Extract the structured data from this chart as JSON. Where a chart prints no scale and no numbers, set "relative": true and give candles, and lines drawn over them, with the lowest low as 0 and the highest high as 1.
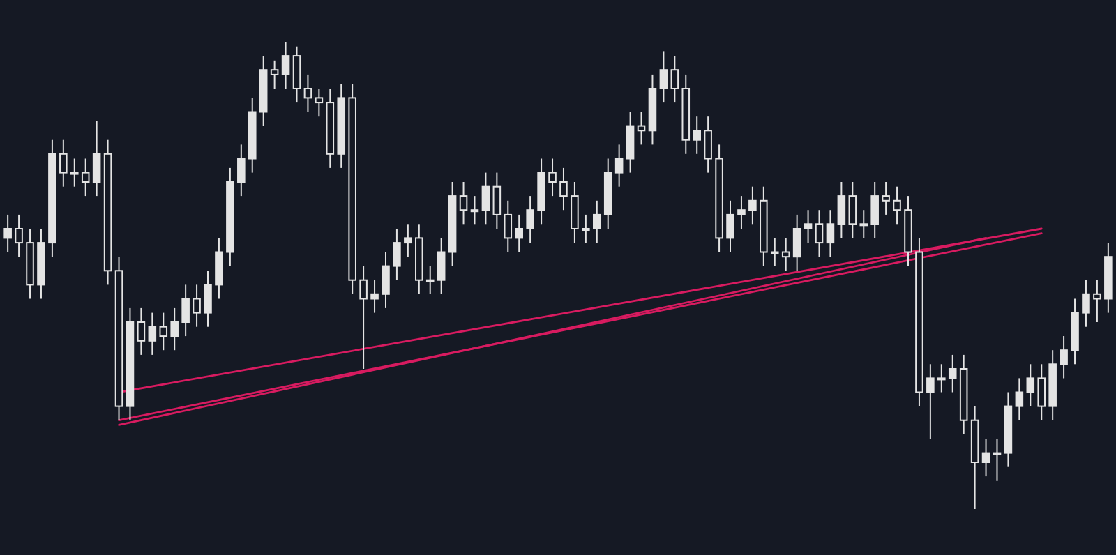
{
  "chart_data": {
    "type": "candlestick",
    "relative": true,
    "color": "#e4e4e4",
    "categories": [
      null,
      null,
      null,
      null,
      null,
      null,
      null,
      null,
      null,
      null,
      null,
      null,
      null,
      null,
      null,
      null,
      null,
      null,
      null,
      null,
      null,
      null,
      null,
      null,
      null,
      null,
      null,
      null,
      null,
      null,
      null,
      null,
      null,
      null,
      null,
      null,
      null,
      null,
      null,
      null,
      null,
      null,
      null,
      null,
      null,
      null,
      null,
      null,
      null,
      null,
      null,
      null,
      null,
      null,
      null,
      null,
      null,
      null,
      null,
      null,
      null,
      null,
      null,
      null,
      null,
      null,
      null,
      null,
      null,
      null,
      null,
      null,
      null,
      null,
      null,
      null,
      null,
      null,
      null,
      null,
      null,
      null,
      null,
      null,
      null,
      null,
      null,
      null,
      null,
      null,
      null,
      null,
      null,
      null,
      null,
      null,
      null,
      null,
      null,
      null
    ],
    "ohlc": [
      [
        0.58,
        0.63,
        0.55,
        0.6
      ],
      [
        0.6,
        0.63,
        0.54,
        0.57
      ],
      [
        0.57,
        0.6,
        0.45,
        0.48
      ],
      [
        0.48,
        0.6,
        0.45,
        0.57
      ],
      [
        0.57,
        0.79,
        0.54,
        0.76
      ],
      [
        0.76,
        0.79,
        0.69,
        0.72
      ],
      [
        0.72,
        0.75,
        0.69,
        0.72
      ],
      [
        0.72,
        0.75,
        0.67,
        0.7
      ],
      [
        0.7,
        0.83,
        0.67,
        0.76
      ],
      [
        0.76,
        0.79,
        0.48,
        0.51
      ],
      [
        0.51,
        0.54,
        0.19,
        0.22
      ],
      [
        0.22,
        0.43,
        0.19,
        0.4
      ],
      [
        0.4,
        0.43,
        0.33,
        0.36
      ],
      [
        0.36,
        0.42,
        0.33,
        0.39
      ],
      [
        0.39,
        0.42,
        0.34,
        0.37
      ],
      [
        0.37,
        0.43,
        0.34,
        0.4
      ],
      [
        0.4,
        0.48,
        0.37,
        0.45
      ],
      [
        0.45,
        0.48,
        0.39,
        0.42
      ],
      [
        0.42,
        0.51,
        0.39,
        0.48
      ],
      [
        0.48,
        0.58,
        0.45,
        0.55
      ],
      [
        0.55,
        0.73,
        0.52,
        0.7
      ],
      [
        0.7,
        0.78,
        0.67,
        0.75
      ],
      [
        0.75,
        0.88,
        0.72,
        0.85
      ],
      [
        0.85,
        0.97,
        0.82,
        0.94
      ],
      [
        0.94,
        0.96,
        0.9,
        0.93
      ],
      [
        0.93,
        1,
        0.9,
        0.97
      ],
      [
        0.97,
        0.99,
        0.87,
        0.9
      ],
      [
        0.9,
        0.93,
        0.85,
        0.88
      ],
      [
        0.88,
        0.9,
        0.84,
        0.87
      ],
      [
        0.87,
        0.9,
        0.73,
        0.76
      ],
      [
        0.76,
        0.91,
        0.73,
        0.88
      ],
      [
        0.88,
        0.91,
        0.46,
        0.49
      ],
      [
        0.49,
        0.52,
        0.3,
        0.45
      ],
      [
        0.45,
        0.49,
        0.42,
        0.46
      ],
      [
        0.46,
        0.55,
        0.43,
        0.52
      ],
      [
        0.52,
        0.6,
        0.49,
        0.57
      ],
      [
        0.57,
        0.61,
        0.54,
        0.58
      ],
      [
        0.58,
        0.61,
        0.46,
        0.49
      ],
      [
        0.49,
        0.52,
        0.46,
        0.49
      ],
      [
        0.49,
        0.58,
        0.46,
        0.55
      ],
      [
        0.55,
        0.7,
        0.52,
        0.67
      ],
      [
        0.67,
        0.7,
        0.61,
        0.64
      ],
      [
        0.64,
        0.67,
        0.61,
        0.64
      ],
      [
        0.64,
        0.72,
        0.61,
        0.69
      ],
      [
        0.69,
        0.72,
        0.6,
        0.63
      ],
      [
        0.63,
        0.66,
        0.55,
        0.58
      ],
      [
        0.58,
        0.63,
        0.55,
        0.6
      ],
      [
        0.6,
        0.67,
        0.57,
        0.64
      ],
      [
        0.64,
        0.75,
        0.61,
        0.72
      ],
      [
        0.72,
        0.75,
        0.67,
        0.7
      ],
      [
        0.7,
        0.73,
        0.64,
        0.67
      ],
      [
        0.67,
        0.7,
        0.57,
        0.6
      ],
      [
        0.6,
        0.63,
        0.57,
        0.6
      ],
      [
        0.6,
        0.66,
        0.57,
        0.63
      ],
      [
        0.63,
        0.75,
        0.6,
        0.72
      ],
      [
        0.72,
        0.78,
        0.69,
        0.75
      ],
      [
        0.75,
        0.85,
        0.72,
        0.82
      ],
      [
        0.82,
        0.85,
        0.78,
        0.81
      ],
      [
        0.81,
        0.93,
        0.78,
        0.9
      ],
      [
        0.9,
        0.98,
        0.87,
        0.94
      ],
      [
        0.94,
        0.97,
        0.87,
        0.9
      ],
      [
        0.9,
        0.93,
        0.76,
        0.79
      ],
      [
        0.79,
        0.84,
        0.76,
        0.81
      ],
      [
        0.81,
        0.84,
        0.72,
        0.75
      ],
      [
        0.75,
        0.78,
        0.55,
        0.58
      ],
      [
        0.58,
        0.66,
        0.55,
        0.63
      ],
      [
        0.63,
        0.67,
        0.6,
        0.64
      ],
      [
        0.64,
        0.69,
        0.61,
        0.66
      ],
      [
        0.66,
        0.69,
        0.52,
        0.55
      ],
      [
        0.55,
        0.58,
        0.52,
        0.55
      ],
      [
        0.55,
        0.58,
        0.51,
        0.54
      ],
      [
        0.54,
        0.63,
        0.51,
        0.6
      ],
      [
        0.6,
        0.64,
        0.57,
        0.61
      ],
      [
        0.61,
        0.64,
        0.54,
        0.57
      ],
      [
        0.57,
        0.64,
        0.54,
        0.61
      ],
      [
        0.61,
        0.7,
        0.58,
        0.67
      ],
      [
        0.67,
        0.7,
        0.58,
        0.61
      ],
      [
        0.61,
        0.64,
        0.58,
        0.61
      ],
      [
        0.61,
        0.7,
        0.58,
        0.67
      ],
      [
        0.67,
        0.7,
        0.63,
        0.66
      ],
      [
        0.66,
        0.69,
        0.61,
        0.64
      ],
      [
        0.64,
        0.67,
        0.52,
        0.55
      ],
      [
        0.55,
        0.58,
        0.22,
        0.25
      ],
      [
        0.25,
        0.31,
        0.15,
        0.28
      ],
      [
        0.28,
        0.31,
        0.25,
        0.28
      ],
      [
        0.28,
        0.33,
        0.25,
        0.3
      ],
      [
        0.3,
        0.33,
        0.16,
        0.19
      ],
      [
        0.19,
        0.22,
        0,
        0.1
      ],
      [
        0.1,
        0.15,
        0.07,
        0.12
      ],
      [
        0.12,
        0.15,
        0.06,
        0.12
      ],
      [
        0.12,
        0.25,
        0.09,
        0.22
      ],
      [
        0.22,
        0.28,
        0.19,
        0.25
      ],
      [
        0.25,
        0.31,
        0.22,
        0.28
      ],
      [
        0.28,
        0.31,
        0.19,
        0.22
      ],
      [
        0.22,
        0.34,
        0.19,
        0.31
      ],
      [
        0.31,
        0.37,
        0.28,
        0.34
      ],
      [
        0.34,
        0.45,
        0.31,
        0.42
      ],
      [
        0.42,
        0.49,
        0.39,
        0.46
      ],
      [
        0.46,
        0.49,
        0.4,
        0.45
      ],
      [
        0.45,
        0.57,
        0.42,
        0.54
      ]
    ],
    "series": [
      {
        "type": "line",
        "color": "#d81b60",
        "values": [
          null,
          null,
          null,
          null,
          null,
          null,
          null,
          null,
          null,
          null,
          0.25,
          null,
          null,
          null,
          null,
          null,
          null,
          null,
          null,
          null,
          null,
          null,
          null,
          null,
          null,
          null,
          null,
          null,
          null,
          null,
          null,
          null,
          null,
          null,
          null,
          null,
          null,
          null,
          null,
          null,
          null,
          null,
          null,
          null,
          null,
          null,
          null,
          null,
          null,
          null,
          null,
          null,
          null,
          null,
          null,
          null,
          null,
          null,
          null,
          null,
          null,
          null,
          null,
          null,
          null,
          null,
          null,
          null,
          null,
          null,
          null,
          null,
          null,
          null,
          null,
          null,
          null,
          null,
          null,
          null,
          null,
          null,
          null,
          null,
          null,
          null,
          null,
          null,
          null,
          null,
          null,
          null,
          null,
          0.6,
          null,
          null,
          null,
          null,
          null,
          null
        ]
      },
      {
        "type": "line",
        "color": "#d81b60",
        "values": [
          null,
          null,
          null,
          null,
          null,
          null,
          null,
          null,
          null,
          null,
          0.19,
          null,
          null,
          null,
          null,
          null,
          null,
          null,
          null,
          null,
          null,
          null,
          null,
          null,
          null,
          null,
          null,
          null,
          null,
          null,
          null,
          null,
          null,
          null,
          null,
          null,
          null,
          null,
          null,
          null,
          null,
          null,
          null,
          null,
          null,
          null,
          null,
          null,
          null,
          null,
          null,
          null,
          null,
          null,
          null,
          null,
          null,
          null,
          null,
          null,
          null,
          null,
          null,
          null,
          null,
          null,
          null,
          null,
          null,
          null,
          null,
          null,
          null,
          null,
          null,
          null,
          null,
          null,
          null,
          null,
          null,
          null,
          null,
          null,
          null,
          null,
          null,
          null,
          null,
          null,
          null,
          null,
          null,
          0.59,
          null,
          null,
          null,
          null,
          null,
          null
        ]
      },
      {
        "type": "line",
        "color": "#d81b60",
        "values": [
          null,
          null,
          null,
          null,
          null,
          null,
          null,
          null,
          null,
          null,
          0.18,
          null,
          null,
          null,
          null,
          null,
          null,
          null,
          null,
          null,
          null,
          null,
          null,
          null,
          null,
          null,
          null,
          null,
          null,
          null,
          null,
          null,
          null,
          null,
          null,
          null,
          null,
          null,
          null,
          null,
          null,
          null,
          null,
          null,
          null,
          null,
          null,
          null,
          null,
          null,
          null,
          null,
          null,
          null,
          null,
          null,
          null,
          null,
          null,
          null,
          null,
          null,
          null,
          null,
          null,
          null,
          null,
          null,
          null,
          null,
          null,
          null,
          null,
          null,
          null,
          null,
          null,
          null,
          null,
          null,
          null,
          null,
          null,
          null,
          null,
          null,
          null,
          null,
          0.58,
          null,
          null,
          null,
          null,
          null,
          null,
          null,
          null,
          null,
          null,
          null
        ]
      }
    ]
  }
}
